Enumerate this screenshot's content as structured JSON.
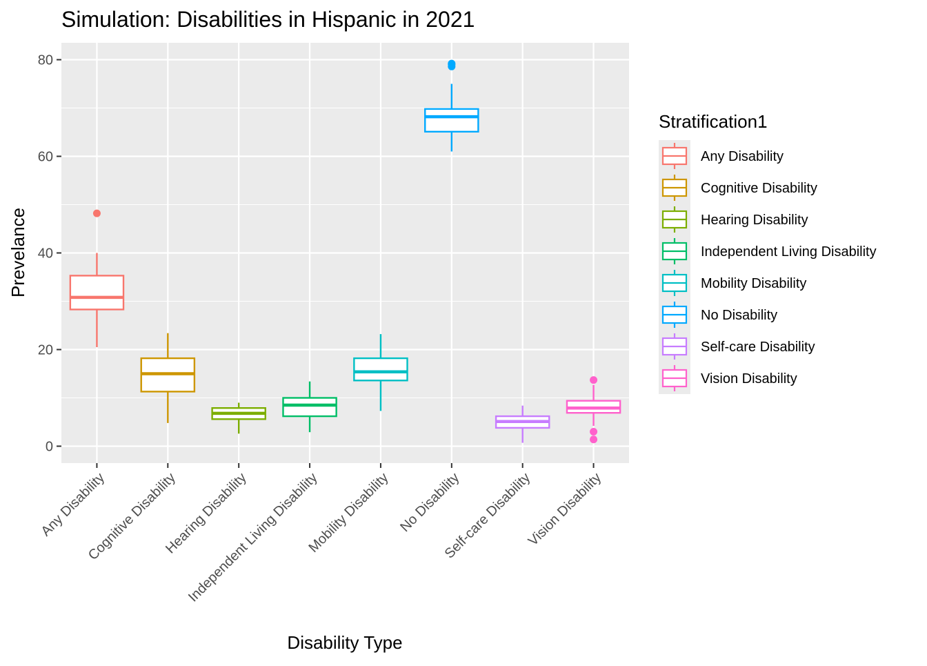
{
  "chart_data": {
    "type": "boxplot",
    "title": "Simulation: Disabilities in Hispanic in 2021",
    "xlabel": "Disability Type",
    "ylabel": "Prevelance",
    "ylim": [
      -3.5,
      83.5
    ],
    "yticks": [
      0,
      20,
      40,
      60,
      80
    ],
    "grid": true,
    "legend": {
      "title": "Stratification1",
      "position": "right"
    },
    "categories": [
      "Any Disability",
      "Cognitive Disability",
      "Hearing Disability",
      "Independent Living Disability",
      "Mobility Disability",
      "No Disability",
      "Self-care Disability",
      "Vision Disability"
    ],
    "series": [
      {
        "name": "Any Disability",
        "color": "#F8766D",
        "min": 20.5,
        "q1": 28.3,
        "median": 30.8,
        "q3": 35.3,
        "max": 40.0,
        "outliers": [
          48.2
        ]
      },
      {
        "name": "Cognitive Disability",
        "color": "#CD9600",
        "min": 4.8,
        "q1": 11.3,
        "median": 15.0,
        "q3": 18.2,
        "max": 23.4,
        "outliers": []
      },
      {
        "name": "Hearing Disability",
        "color": "#7CAE00",
        "min": 2.6,
        "q1": 5.6,
        "median": 6.8,
        "q3": 7.9,
        "max": 9.0,
        "outliers": []
      },
      {
        "name": "Independent Living Disability",
        "color": "#00BE67",
        "min": 2.9,
        "q1": 6.2,
        "median": 8.5,
        "q3": 10.0,
        "max": 13.4,
        "outliers": []
      },
      {
        "name": "Mobility Disability",
        "color": "#00BFC4",
        "min": 7.3,
        "q1": 13.6,
        "median": 15.4,
        "q3": 18.2,
        "max": 23.2,
        "outliers": []
      },
      {
        "name": "No Disability",
        "color": "#00A9FF",
        "min": 61.0,
        "q1": 65.1,
        "median": 68.2,
        "q3": 69.8,
        "max": 75.0,
        "outliers": [
          78.6,
          79.0,
          79.2
        ]
      },
      {
        "name": "Self-care Disability",
        "color": "#C77CFF",
        "min": 0.7,
        "q1": 3.8,
        "median": 5.1,
        "q3": 6.2,
        "max": 8.4,
        "outliers": []
      },
      {
        "name": "Vision Disability",
        "color": "#FF61CC",
        "min": 4.2,
        "q1": 6.9,
        "median": 7.9,
        "q3": 9.4,
        "max": 12.7,
        "outliers": [
          13.7,
          3.0,
          1.4
        ]
      }
    ]
  }
}
